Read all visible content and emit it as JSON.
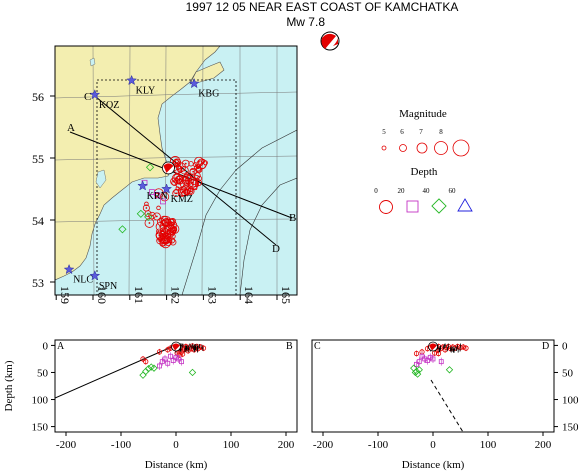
{
  "header": {
    "title": "1997 12 05 NEAR EAST COAST OF KAMCHATKA",
    "magnitude": "Mw  7.8"
  },
  "colors": {
    "land": "#f3eeb0",
    "sea": "#c9f1f3",
    "event": "#e30000",
    "depth_mid": "#c433c4",
    "depth_deep": "#27b827",
    "depth_vdeep": "#2222dd",
    "station": "#5a5adc"
  },
  "map": {
    "lon_ticks": [
      "159",
      "160",
      "161",
      "162",
      "163",
      "164",
      "165"
    ],
    "lat_ticks": [
      "53",
      "54",
      "55",
      "56"
    ],
    "stations": [
      {
        "code": "KLY",
        "lon": 161.05,
        "lat": 56.25
      },
      {
        "code": "KBG",
        "lon": 162.75,
        "lat": 56.2
      },
      {
        "code": "KOZ",
        "lon": 160.05,
        "lat": 56.02
      },
      {
        "code": "KRN",
        "lon": 161.35,
        "lat": 54.55
      },
      {
        "code": "KMZ",
        "lon": 162.0,
        "lat": 54.5
      },
      {
        "code": "NLC",
        "lon": 159.35,
        "lat": 53.2
      },
      {
        "code": "SPN",
        "lon": 160.05,
        "lat": 53.1
      }
    ],
    "profile_labels": [
      "A",
      "B",
      "C",
      "D"
    ]
  },
  "legend": {
    "magnitude_title": "Magnitude",
    "magnitudes": [
      "5",
      "6",
      "7",
      "8"
    ],
    "depth_title": "Depth",
    "depths": [
      "0",
      "20",
      "40",
      "60"
    ]
  },
  "sections": [
    {
      "left_label": "A",
      "right_label": "B"
    },
    {
      "left_label": "C",
      "right_label": "D"
    }
  ],
  "chart_data": {
    "type": "scatter",
    "title": "1997 12 05 NEAR EAST COAST OF KAMCHATKA",
    "xlabel": "Distance (km)",
    "ylabel": "Depth (km)",
    "xlim": [
      -220,
      220
    ],
    "ylim": [
      160,
      -10
    ],
    "x_ticks": [
      "-200",
      "-100",
      "0",
      "100",
      "200"
    ],
    "y_ticks": [
      "0",
      "50",
      "100",
      "150"
    ],
    "series": [
      {
        "name": "0",
        "marker": "circle",
        "color": "#e30000",
        "points_AB": [
          [
            -15,
            8
          ],
          [
            -10,
            5
          ],
          [
            -5,
            3
          ],
          [
            0,
            2
          ],
          [
            3,
            6
          ],
          [
            5,
            10
          ],
          [
            8,
            4
          ],
          [
            10,
            12
          ],
          [
            12,
            3
          ],
          [
            15,
            7
          ],
          [
            18,
            2
          ],
          [
            20,
            5
          ],
          [
            22,
            10
          ],
          [
            25,
            3
          ],
          [
            28,
            6
          ],
          [
            30,
            1
          ],
          [
            33,
            8
          ],
          [
            35,
            4
          ],
          [
            38,
            2
          ],
          [
            40,
            6
          ],
          [
            45,
            3
          ],
          [
            50,
            5
          ],
          [
            -30,
            12
          ],
          [
            -60,
            25
          ],
          [
            -55,
            30
          ],
          [
            2,
            14
          ],
          [
            6,
            18
          ],
          [
            12,
            16
          ]
        ],
        "points_CD": [
          [
            -10,
            6
          ],
          [
            -5,
            3
          ],
          [
            0,
            2
          ],
          [
            5,
            5
          ],
          [
            8,
            9
          ],
          [
            10,
            2
          ],
          [
            14,
            6
          ],
          [
            18,
            3
          ],
          [
            22,
            8
          ],
          [
            25,
            4
          ],
          [
            28,
            2
          ],
          [
            32,
            6
          ],
          [
            36,
            3
          ],
          [
            40,
            5
          ],
          [
            45,
            2
          ],
          [
            50,
            4
          ],
          [
            55,
            3
          ],
          [
            60,
            5
          ],
          [
            -20,
            12
          ],
          [
            -30,
            15
          ],
          [
            3,
            14
          ],
          [
            10,
            15
          ]
        ]
      },
      {
        "name": "20",
        "marker": "square",
        "color": "#c433c4",
        "points_AB": [
          [
            -20,
            25
          ],
          [
            -25,
            30
          ],
          [
            -15,
            33
          ],
          [
            -10,
            20
          ],
          [
            -5,
            28
          ],
          [
            0,
            22
          ],
          [
            5,
            25
          ],
          [
            10,
            30
          ],
          [
            -30,
            38
          ]
        ],
        "points_CD": [
          [
            -20,
            20
          ],
          [
            -15,
            25
          ],
          [
            -25,
            30
          ],
          [
            -10,
            28
          ],
          [
            -5,
            22
          ],
          [
            0,
            25
          ],
          [
            -30,
            35
          ],
          [
            15,
            30
          ]
        ]
      },
      {
        "name": "40",
        "marker": "diamond",
        "color": "#27b827",
        "points_AB": [
          [
            -60,
            55
          ],
          [
            -55,
            48
          ],
          [
            -50,
            43
          ],
          [
            -45,
            40
          ],
          [
            -40,
            42
          ],
          [
            30,
            50
          ]
        ],
        "points_CD": [
          [
            -35,
            42
          ],
          [
            -30,
            48
          ],
          [
            -28,
            53
          ],
          [
            -25,
            45
          ],
          [
            -32,
            50
          ],
          [
            30,
            45
          ]
        ]
      }
    ]
  }
}
